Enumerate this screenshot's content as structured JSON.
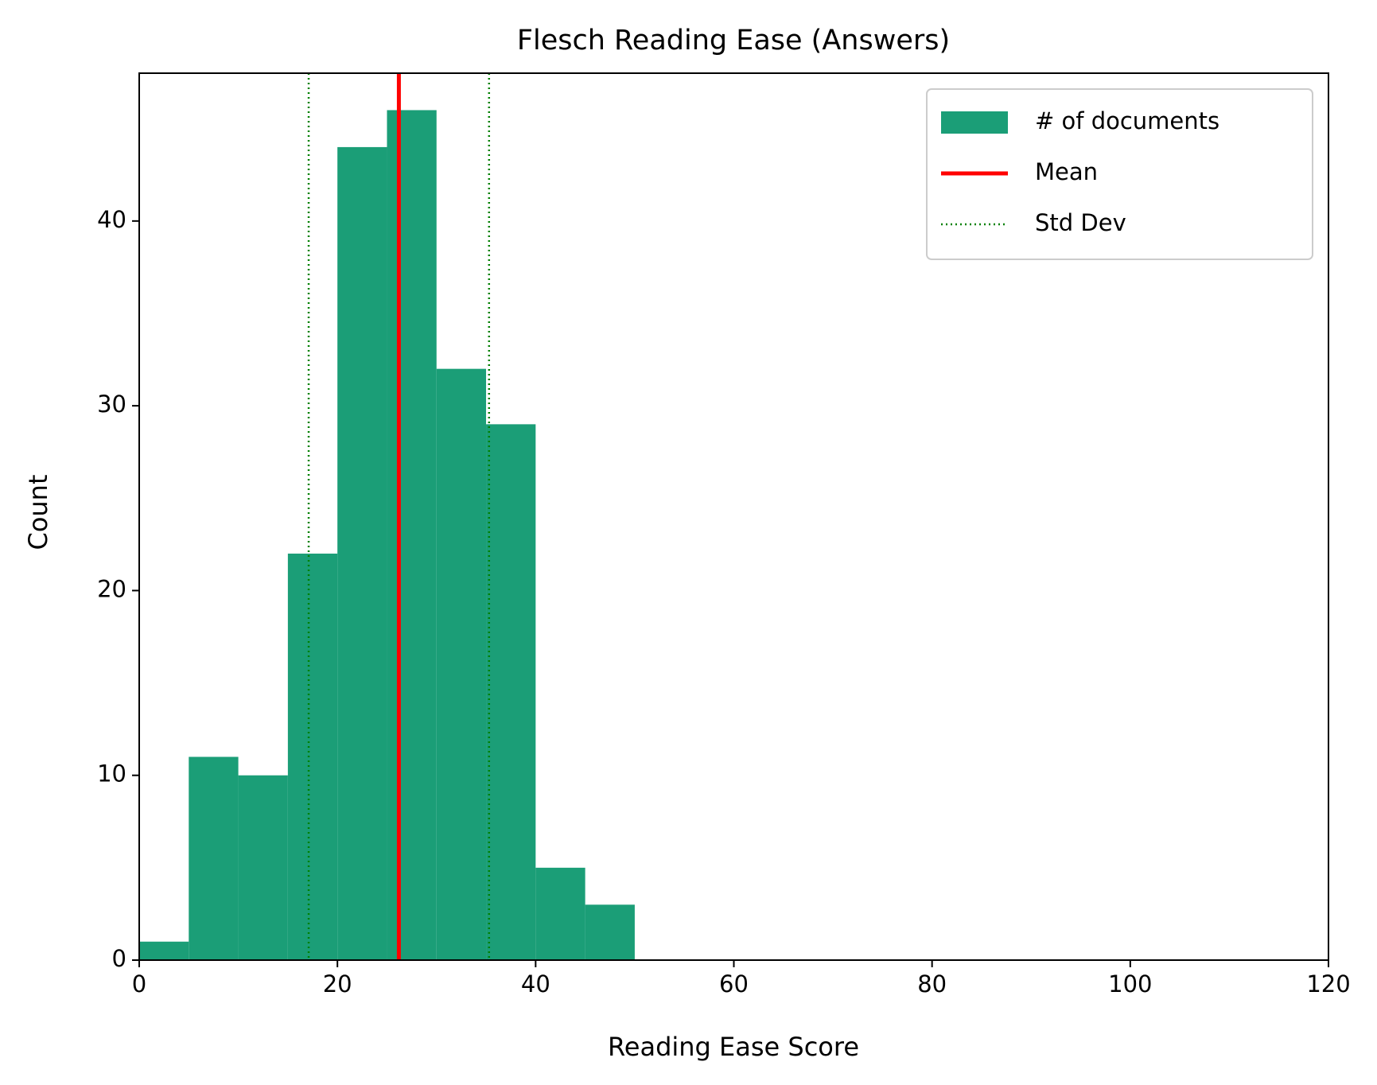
{
  "chart_data": {
    "type": "histogram",
    "title": "Flesch Reading Ease (Answers)",
    "x_label": "Reading Ease Score",
    "y_label": "Count",
    "bins": [
      0,
      5,
      10,
      15,
      20,
      25,
      30,
      35,
      40,
      45,
      50
    ],
    "series": [
      {
        "name": "# of documents",
        "color": "#1b9e77",
        "values": [
          1,
          11,
          10,
          22,
          44,
          46,
          32,
          29,
          5,
          3
        ]
      }
    ],
    "vlines": [
      {
        "name": "Mean",
        "color": "#ff0000",
        "style": "solid",
        "x": [
          26.2
        ]
      },
      {
        "name": "Std Dev",
        "color": "#008000",
        "style": "dotted",
        "x": [
          17.1,
          35.3
        ]
      }
    ],
    "xlim": [
      0,
      120
    ],
    "xticks": [
      0,
      20,
      40,
      60,
      80,
      100,
      120
    ],
    "ylim": [
      0,
      48
    ],
    "yticks": [
      0,
      10,
      20,
      30,
      40
    ],
    "legend": "upper right"
  }
}
